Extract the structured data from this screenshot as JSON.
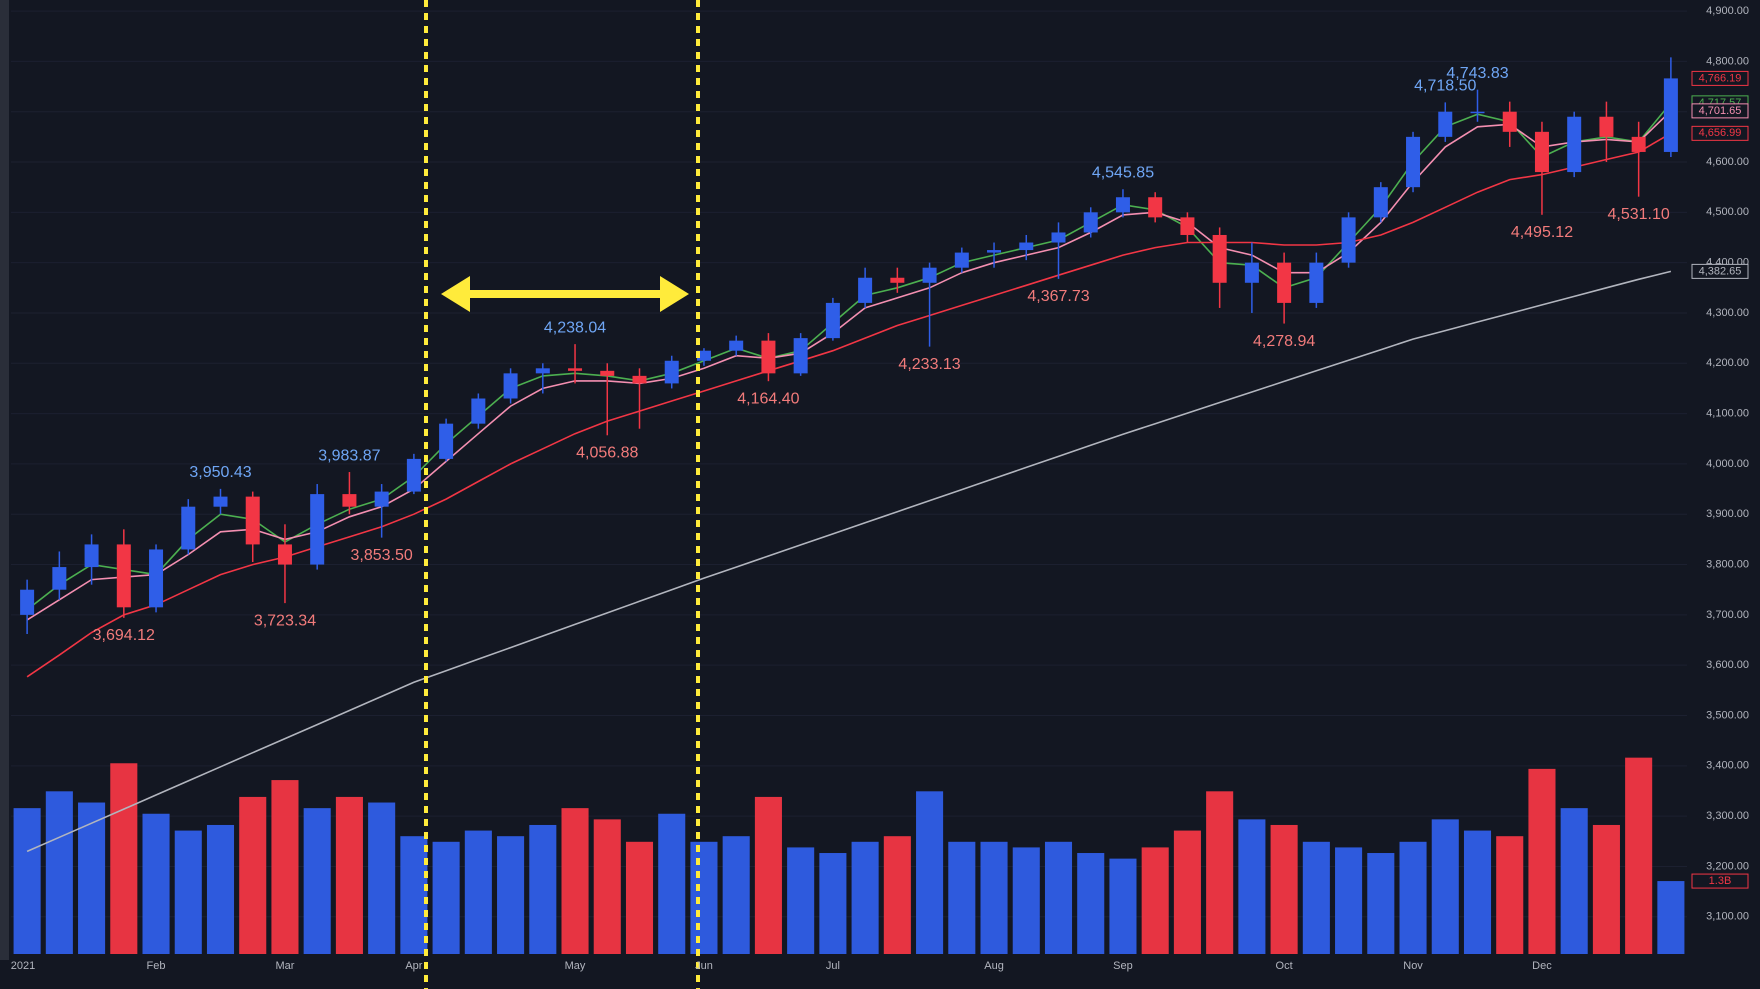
{
  "chart_data": {
    "type": "candlestick",
    "categories": [
      "2021",
      null,
      null,
      null,
      "Feb",
      null,
      null,
      null,
      "Mar",
      null,
      null,
      null,
      "Apr",
      null,
      null,
      null,
      null,
      "May",
      null,
      null,
      null,
      "Jun",
      null,
      null,
      null,
      "Jul",
      null,
      null,
      null,
      null,
      "Aug",
      null,
      null,
      null,
      "Sep",
      null,
      null,
      null,
      null,
      "Oct",
      null,
      null,
      null,
      "Nov",
      null,
      null,
      null,
      "Dec",
      null,
      null,
      null,
      null
    ],
    "candles": {
      "open": [
        3700,
        3750,
        3795,
        3840,
        3715,
        3830,
        3915,
        3935,
        3840,
        3800,
        3940,
        3915,
        3945,
        4010,
        4080,
        4130,
        4180,
        4190,
        4185,
        4175,
        4160,
        4205,
        4225,
        4245,
        4180,
        4250,
        4320,
        4370,
        4360,
        4390,
        4420,
        4425,
        4440,
        4460,
        4500,
        4530,
        4490,
        4455,
        4360,
        4400,
        4320,
        4400,
        4490,
        4550,
        4650,
        4700,
        4700,
        4660,
        4580,
        4690,
        4650,
        4620
      ],
      "high": [
        3770,
        3826,
        3860,
        3870,
        3840,
        3930,
        3950.43,
        3945,
        3880,
        3960,
        3983.87,
        3960,
        4020,
        4090,
        4140,
        4190,
        4200,
        4238.04,
        4200,
        4190,
        4215,
        4230,
        4255,
        4260,
        4260,
        4330,
        4390,
        4390,
        4400,
        4430,
        4440,
        4455,
        4480,
        4510,
        4545.85,
        4540,
        4500,
        4470,
        4440,
        4420,
        4420,
        4500,
        4560,
        4660,
        4718.5,
        4743.83,
        4720,
        4680,
        4700,
        4720,
        4680,
        4808
      ],
      "low": [
        3662,
        3730,
        3760,
        3694.12,
        3705,
        3820,
        3900,
        3805,
        3723.34,
        3790,
        3900,
        3853.5,
        3940,
        4005,
        4070,
        4120,
        4140,
        4160,
        4056.88,
        4070,
        4150,
        4195,
        4215,
        4164.4,
        4175,
        4245,
        4310,
        4340,
        4233.13,
        4380,
        4390,
        4405,
        4367.73,
        4450,
        4490,
        4480,
        4440,
        4310,
        4300,
        4278.94,
        4310,
        4390,
        4480,
        4540,
        4640,
        4680,
        4630,
        4495.12,
        4570,
        4600,
        4531.1,
        4610
      ],
      "close": [
        3750,
        3795,
        3840,
        3715,
        3830,
        3915,
        3935,
        3840,
        3800,
        3940,
        3915,
        3945,
        4010,
        4080,
        4130,
        4180,
        4190,
        4185,
        4175,
        4160,
        4205,
        4225,
        4245,
        4180,
        4250,
        4320,
        4370,
        4360,
        4390,
        4420,
        4425,
        4440,
        4460,
        4500,
        4530,
        4490,
        4455,
        4360,
        4400,
        4320,
        4400,
        4490,
        4550,
        4650,
        4700,
        4700,
        4660,
        4580,
        4690,
        4650,
        4620,
        4766.19
      ],
      "high_labels": [
        null,
        null,
        null,
        null,
        null,
        null,
        "3,950.43",
        null,
        null,
        null,
        "3,983.87",
        null,
        null,
        null,
        null,
        null,
        null,
        "4,238.04",
        null,
        null,
        null,
        null,
        null,
        null,
        null,
        null,
        null,
        null,
        null,
        null,
        null,
        null,
        null,
        null,
        "4,545.85",
        null,
        null,
        null,
        null,
        null,
        null,
        null,
        null,
        null,
        "4,718.50",
        "4,743.83",
        null,
        null,
        null,
        null,
        null,
        null
      ],
      "low_labels": [
        null,
        null,
        null,
        "3,694.12",
        null,
        null,
        null,
        null,
        "3,723.34",
        null,
        null,
        "3,853.50",
        null,
        null,
        null,
        null,
        null,
        null,
        "4,056.88",
        null,
        null,
        null,
        null,
        "4,164.40",
        null,
        null,
        null,
        null,
        "4,233.13",
        null,
        null,
        null,
        "4,367.73",
        null,
        null,
        null,
        null,
        null,
        null,
        "4,278.94",
        null,
        null,
        null,
        null,
        null,
        null,
        null,
        "4,495.12",
        null,
        null,
        "4,531.10",
        null
      ],
      "up_color": "#2f5ee8",
      "down_color": "#f23645",
      "last_label": {
        "value": 4766.19,
        "label": "4,766.19"
      },
      "last_label_color": "#f23645"
    },
    "series": [
      {
        "color": "#4caf50",
        "values": [
          3710,
          3760,
          3800,
          3790,
          3780,
          3850,
          3900,
          3890,
          3845,
          3880,
          3910,
          3930,
          3975,
          4040,
          4095,
          4150,
          4175,
          4180,
          4175,
          4165,
          4180,
          4205,
          4230,
          4210,
          4225,
          4280,
          4335,
          4350,
          4370,
          4400,
          4415,
          4430,
          4445,
          4480,
          4515,
          4505,
          4470,
          4400,
          4395,
          4350,
          4370,
          4440,
          4510,
          4600,
          4670,
          4695,
          4680,
          4610,
          4640,
          4650,
          4640,
          4717.57
        ],
        "last_label": {
          "value": 4717.57,
          "label": "4,717.57"
        }
      },
      {
        "color": "#f48fb1",
        "values": [
          3690,
          3730,
          3770,
          3775,
          3780,
          3820,
          3865,
          3870,
          3850,
          3865,
          3895,
          3915,
          3950,
          4005,
          4060,
          4115,
          4150,
          4165,
          4165,
          4160,
          4170,
          4190,
          4215,
          4210,
          4220,
          4260,
          4310,
          4330,
          4350,
          4380,
          4400,
          4415,
          4430,
          4460,
          4495,
          4500,
          4480,
          4430,
          4415,
          4380,
          4380,
          4420,
          4480,
          4560,
          4630,
          4670,
          4675,
          4630,
          4640,
          4645,
          4640,
          4701.65
        ],
        "last_label": {
          "value": 4701.65,
          "label": "4,701.65"
        }
      },
      {
        "color": "#f23645",
        "values": [
          3577,
          3620,
          3665,
          3700,
          3720,
          3750,
          3780,
          3800,
          3815,
          3835,
          3855,
          3875,
          3900,
          3930,
          3965,
          4000,
          4030,
          4060,
          4085,
          4105,
          4125,
          4145,
          4165,
          4185,
          4205,
          4225,
          4250,
          4275,
          4295,
          4315,
          4335,
          4355,
          4375,
          4395,
          4415,
          4430,
          4440,
          4440,
          4440,
          4435,
          4435,
          4440,
          4455,
          4480,
          4510,
          4540,
          4565,
          4575,
          4590,
          4605,
          4620,
          4656.99
        ],
        "last_label": {
          "value": 4656.99,
          "label": "4,656.99"
        }
      },
      {
        "color": "#b2b5be",
        "values": [
          3230,
          3258,
          3286,
          3314,
          3342,
          3370,
          3398,
          3426,
          3454,
          3482,
          3510,
          3538,
          3566,
          3589,
          3612,
          3635,
          3658,
          3681,
          3704,
          3727,
          3750,
          3773,
          3795,
          3817,
          3839,
          3861,
          3883,
          3905,
          3927,
          3949,
          3971,
          3993,
          4015,
          4037,
          4059,
          4080,
          4101,
          4122,
          4143,
          4164,
          4185,
          4206,
          4227,
          4248,
          4265,
          4282,
          4299,
          4316,
          4333,
          4350,
          4367,
          4382.65
        ],
        "last_label": {
          "value": 4382.65,
          "label": "4,382.65"
        }
      }
    ],
    "volume": {
      "values": [
        2.6,
        2.9,
        2.7,
        3.4,
        2.5,
        2.2,
        2.3,
        2.8,
        3.1,
        2.6,
        2.8,
        2.7,
        2.1,
        2.0,
        2.2,
        2.1,
        2.3,
        2.6,
        2.4,
        2.0,
        2.5,
        2.0,
        2.1,
        2.8,
        1.9,
        1.8,
        2.0,
        2.1,
        2.9,
        2.0,
        2.0,
        1.9,
        2.0,
        1.8,
        1.7,
        1.9,
        2.2,
        2.9,
        2.4,
        2.3,
        2.0,
        1.9,
        1.8,
        2.0,
        2.4,
        2.2,
        2.1,
        3.3,
        2.6,
        2.3,
        3.5,
        1.3
      ],
      "last_label": {
        "value": 1.3,
        "label": "1.3B"
      }
    },
    "ylim": [
      3026,
      4922
    ],
    "yticks": [
      {
        "value": 3100,
        "label": "3,100.00"
      },
      {
        "value": 3200,
        "label": "3,200.00"
      },
      {
        "value": 3300,
        "label": "3,300.00"
      },
      {
        "value": 3400,
        "label": "3,400.00"
      },
      {
        "value": 3500,
        "label": "3,500.00"
      },
      {
        "value": 3600,
        "label": "3,600.00"
      },
      {
        "value": 3700,
        "label": "3,700.00"
      },
      {
        "value": 3800,
        "label": "3,800.00"
      },
      {
        "value": 3900,
        "label": "3,900.00"
      },
      {
        "value": 4000,
        "label": "4,000.00"
      },
      {
        "value": 4100,
        "label": "4,100.00"
      },
      {
        "value": 4200,
        "label": "4,200.00"
      },
      {
        "value": 4300,
        "label": "4,300.00"
      },
      {
        "value": 4400,
        "label": "4,400.00"
      },
      {
        "value": 4500,
        "label": "4,500.00"
      },
      {
        "value": 4600,
        "label": "4,600.00"
      },
      {
        "value": 4700,
        "label": "4,700.00"
      },
      {
        "value": 4800,
        "label": "4,800.00"
      },
      {
        "value": 4900,
        "label": "4,900.00"
      }
    ],
    "grid": true
  }
}
